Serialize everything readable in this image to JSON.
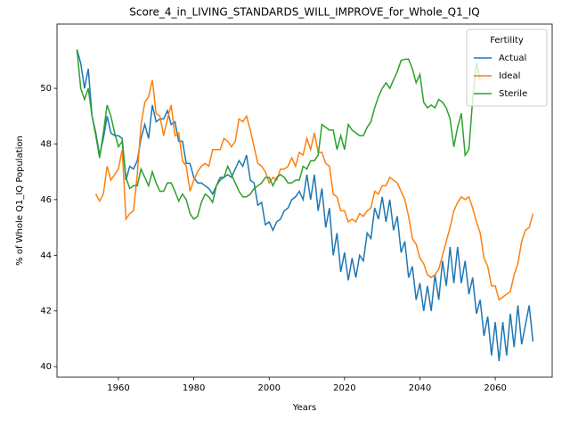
{
  "chart_data": {
    "type": "line",
    "title": "Score_4_in_LIVING_STANDARDS_WILL_IMPROVE_for_Whole_Q1_IQ",
    "x_label": "Years",
    "y_label": "% of Whole Q1_IQ Population",
    "legend_title": "Fertility",
    "legend_position": "upper right",
    "xlim": [
      1943.7,
      2075.1
    ],
    "ylim": [
      39.62,
      52.31
    ],
    "xticks": [
      1960,
      1980,
      2000,
      2020,
      2040,
      2060
    ],
    "yticks": [
      40,
      42,
      44,
      46,
      48,
      50
    ],
    "grid": false,
    "x": [
      1949,
      1950,
      1951,
      1952,
      1953,
      1954,
      1955,
      1956,
      1957,
      1958,
      1959,
      1960,
      1961,
      1962,
      1963,
      1964,
      1965,
      1966,
      1967,
      1968,
      1969,
      1970,
      1971,
      1972,
      1973,
      1974,
      1975,
      1976,
      1977,
      1978,
      1979,
      1980,
      1981,
      1982,
      1983,
      1984,
      1985,
      1986,
      1987,
      1988,
      1989,
      1990,
      1991,
      1992,
      1993,
      1994,
      1995,
      1996,
      1997,
      1998,
      1999,
      2000,
      2001,
      2002,
      2003,
      2004,
      2005,
      2006,
      2007,
      2008,
      2009,
      2010,
      2011,
      2012,
      2013,
      2014,
      2015,
      2016,
      2017,
      2018,
      2019,
      2020,
      2021,
      2022,
      2023,
      2024,
      2025,
      2026,
      2027,
      2028,
      2029,
      2030,
      2031,
      2032,
      2033,
      2034,
      2035,
      2036,
      2037,
      2038,
      2039,
      2040,
      2041,
      2042,
      2043,
      2044,
      2045,
      2046,
      2047,
      2048,
      2049,
      2050,
      2051,
      2052,
      2053,
      2054,
      2055,
      2056,
      2057,
      2058,
      2059,
      2060,
      2061,
      2062,
      2063,
      2064,
      2065,
      2066,
      2067,
      2068,
      2069,
      2070
    ],
    "series": [
      {
        "name": "Actual",
        "color": "#1f77b4",
        "values": [
          51.4,
          50.9,
          50.0,
          50.7,
          49.0,
          48.4,
          47.6,
          48.2,
          49.0,
          48.4,
          48.3,
          48.3,
          48.2,
          46.7,
          47.2,
          47.1,
          47.4,
          48.2,
          48.7,
          48.2,
          49.4,
          48.8,
          48.9,
          48.9,
          49.2,
          48.7,
          48.8,
          48.1,
          48.1,
          47.3,
          47.3,
          46.8,
          46.6,
          46.6,
          46.5,
          46.4,
          46.2,
          46.5,
          46.8,
          46.8,
          46.9,
          46.8,
          47.1,
          47.4,
          47.2,
          47.6,
          46.7,
          46.6,
          45.8,
          45.9,
          45.1,
          45.2,
          44.9,
          45.2,
          45.3,
          45.6,
          45.7,
          46.0,
          46.1,
          46.3,
          46.0,
          46.9,
          46.0,
          46.9,
          45.6,
          46.4,
          45.0,
          45.7,
          44.0,
          44.8,
          43.4,
          44.1,
          43.1,
          43.9,
          43.2,
          44.0,
          43.8,
          44.8,
          44.6,
          45.7,
          45.3,
          46.1,
          45.2,
          46.0,
          44.9,
          45.4,
          44.1,
          44.5,
          43.2,
          43.6,
          42.4,
          43.0,
          42.0,
          42.9,
          42.0,
          43.3,
          42.4,
          43.8,
          42.9,
          44.3,
          43.0,
          44.3,
          43.0,
          43.8,
          42.6,
          43.2,
          41.9,
          42.4,
          41.1,
          41.8,
          40.4,
          41.6,
          40.2,
          41.6,
          40.4,
          41.9,
          40.7,
          42.2,
          40.8,
          41.5,
          42.2,
          40.9
        ]
      },
      {
        "name": "Ideal",
        "color": "#ff7f0e",
        "values": [
          null,
          null,
          null,
          null,
          null,
          46.2,
          45.95,
          46.2,
          47.2,
          46.7,
          46.9,
          47.1,
          47.8,
          45.3,
          45.5,
          45.6,
          46.9,
          48.7,
          49.5,
          49.7,
          50.3,
          49.1,
          49.0,
          48.3,
          48.9,
          49.4,
          48.3,
          48.4,
          47.4,
          47.2,
          46.3,
          46.7,
          47.0,
          47.2,
          47.3,
          47.2,
          47.8,
          47.8,
          47.8,
          48.2,
          48.1,
          47.9,
          48.1,
          48.9,
          48.8,
          49.0,
          48.5,
          47.9,
          47.3,
          47.2,
          47.0,
          46.6,
          46.8,
          46.7,
          47.1,
          47.1,
          47.2,
          47.5,
          47.2,
          47.7,
          47.6,
          48.2,
          47.8,
          48.4,
          47.7,
          47.7,
          47.3,
          47.2,
          46.2,
          46.1,
          45.6,
          45.6,
          45.2,
          45.3,
          45.2,
          45.5,
          45.4,
          45.6,
          45.7,
          46.3,
          46.2,
          46.5,
          46.5,
          46.8,
          46.7,
          46.6,
          46.3,
          46.0,
          45.4,
          44.6,
          44.4,
          43.9,
          43.7,
          43.3,
          43.2,
          43.3,
          43.5,
          44.0,
          44.5,
          45.0,
          45.6,
          45.9,
          46.1,
          46.0,
          46.1,
          45.7,
          45.2,
          44.8,
          43.9,
          43.6,
          42.9,
          42.9,
          42.4,
          42.5,
          42.6,
          42.7,
          43.3,
          43.7,
          44.5,
          44.9,
          45.0,
          45.5
        ]
      },
      {
        "name": "Sterile",
        "color": "#2ca02c",
        "values": [
          51.4,
          50.0,
          49.6,
          50.0,
          49.0,
          48.3,
          47.5,
          48.4,
          49.4,
          49.0,
          48.4,
          47.9,
          48.1,
          46.8,
          46.4,
          46.5,
          46.5,
          47.1,
          46.8,
          46.5,
          47.0,
          46.6,
          46.3,
          46.3,
          46.6,
          46.6,
          46.3,
          45.95,
          46.2,
          46.0,
          45.5,
          45.3,
          45.4,
          45.9,
          46.2,
          46.1,
          45.9,
          46.5,
          46.7,
          46.8,
          47.2,
          46.9,
          46.6,
          46.3,
          46.1,
          46.1,
          46.2,
          46.4,
          46.5,
          46.6,
          46.8,
          46.8,
          46.5,
          46.8,
          46.9,
          46.8,
          46.6,
          46.6,
          46.7,
          46.7,
          47.2,
          47.1,
          47.4,
          47.4,
          47.6,
          48.7,
          48.6,
          48.5,
          48.5,
          47.8,
          48.3,
          47.8,
          48.7,
          48.5,
          48.4,
          48.3,
          48.3,
          48.6,
          48.8,
          49.3,
          49.7,
          50.0,
          50.2,
          50.0,
          50.3,
          50.6,
          51.0,
          51.05,
          51.05,
          50.7,
          50.2,
          50.5,
          49.5,
          49.3,
          49.4,
          49.3,
          49.6,
          49.5,
          49.3,
          48.9,
          47.9,
          48.6,
          49.1,
          47.6,
          47.8,
          49.6,
          50.9,
          50.3,
          null,
          null,
          null,
          null,
          null,
          null,
          null,
          null,
          null,
          null,
          null,
          null,
          null,
          null
        ]
      }
    ]
  }
}
